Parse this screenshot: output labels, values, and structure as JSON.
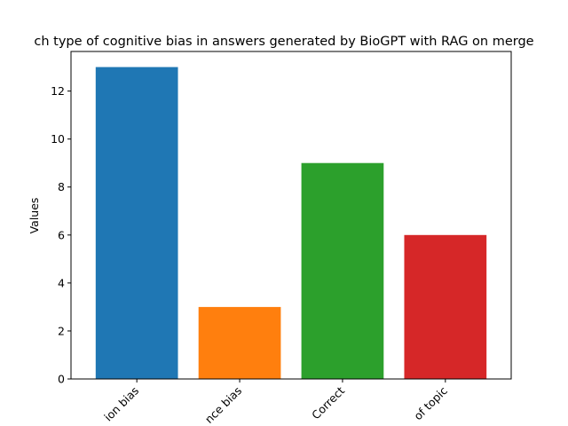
{
  "chart_data": {
    "type": "bar",
    "title": "ch type of cognitive bias in answers generated by BioGPT with RAG on merge",
    "xlabel": "",
    "ylabel": "Values",
    "categories": [
      "ion bias",
      "nce bias",
      "Correct",
      "of topic"
    ],
    "values": [
      13,
      3,
      9,
      6
    ],
    "colors": [
      "#1f77b4",
      "#ff7f0e",
      "#2ca02c",
      "#d62728"
    ],
    "ylim": [
      0,
      13.65
    ],
    "yticks": [
      0,
      2,
      4,
      6,
      8,
      10,
      12
    ],
    "grid": false
  }
}
